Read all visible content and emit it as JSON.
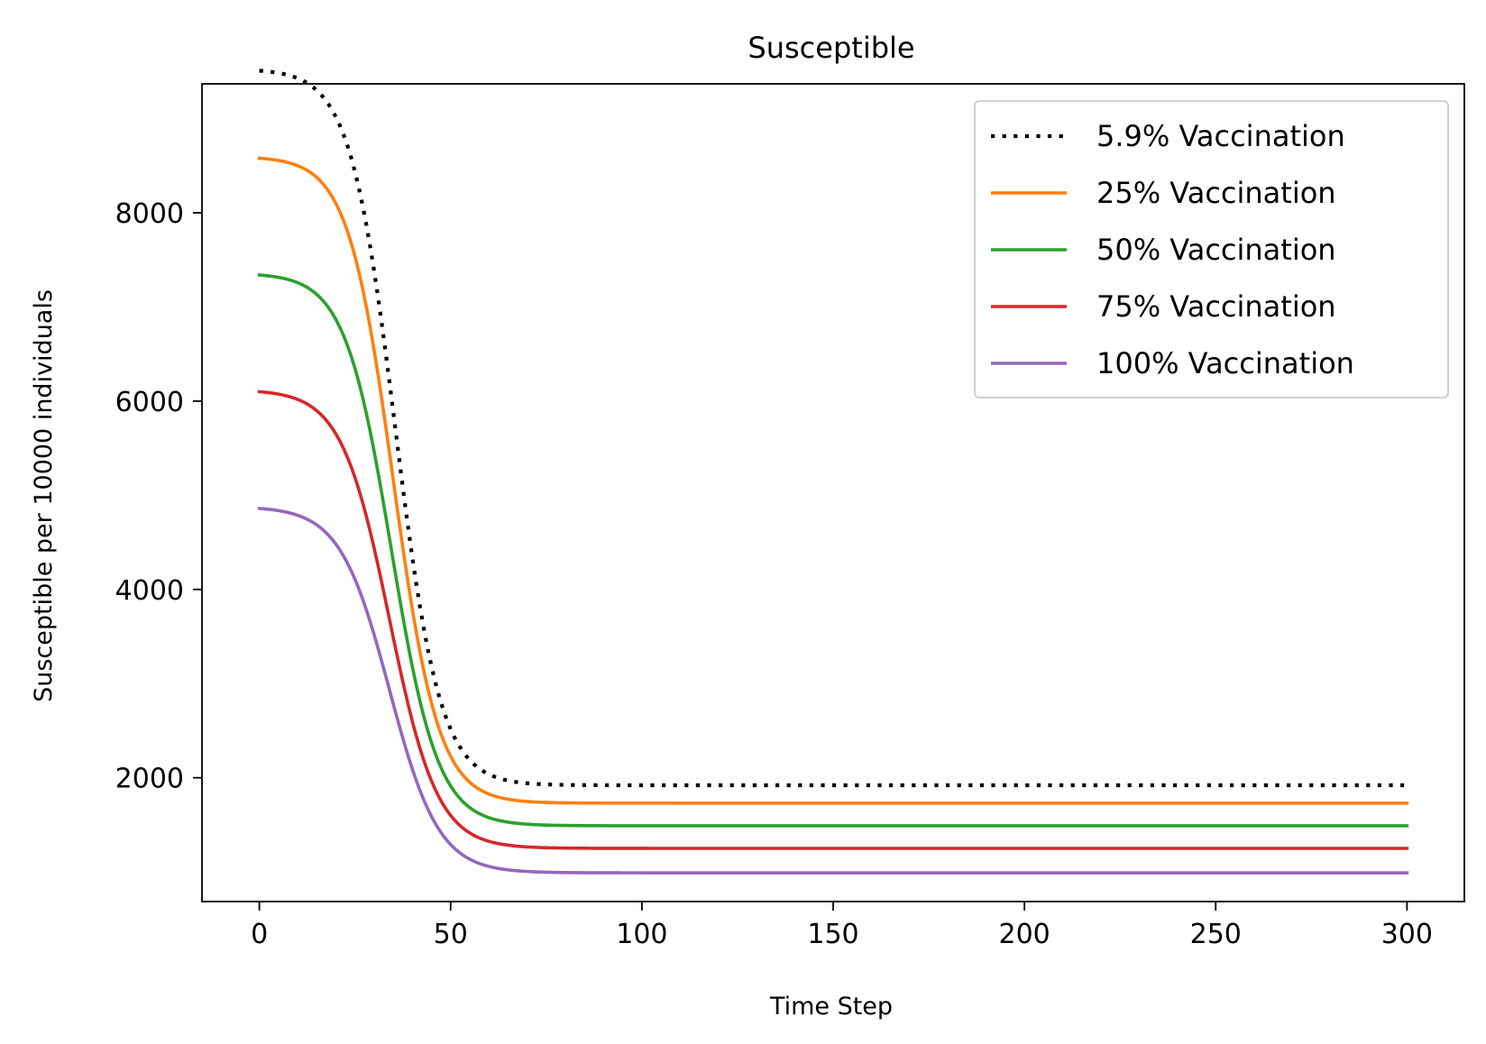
{
  "chart_data": {
    "type": "line",
    "title": "Susceptible",
    "xlabel": "Time Step",
    "ylabel": "Susceptible per 10000 individuals",
    "xlim": [
      -15,
      315
    ],
    "ylim": [
      685,
      9370
    ],
    "xticks": [
      0,
      50,
      100,
      150,
      200,
      250,
      300
    ],
    "yticks": [
      2000,
      4000,
      6000,
      8000
    ],
    "grid": false,
    "legend_position": "top-right",
    "x_range": [
      0,
      300
    ],
    "series": [
      {
        "name": "5.9% Vaccination",
        "color": "#000000",
        "style": "dotted",
        "initial": 9510,
        "final": 1920,
        "midpoint": 35.5,
        "steepness": 0.17
      },
      {
        "name": "25% Vaccination",
        "color": "#ff7f0e",
        "style": "solid",
        "initial": 8580,
        "final": 1730,
        "midpoint": 35.0,
        "steepness": 0.17
      },
      {
        "name": "50% Vaccination",
        "color": "#2ca02c",
        "style": "solid",
        "initial": 7340,
        "final": 1490,
        "midpoint": 34.5,
        "steepness": 0.165
      },
      {
        "name": "75% Vaccination",
        "color": "#d62728",
        "style": "solid",
        "initial": 6100,
        "final": 1250,
        "midpoint": 34.0,
        "steepness": 0.16
      },
      {
        "name": "100% Vaccination",
        "color": "#9467bd",
        "style": "solid",
        "initial": 4860,
        "final": 990,
        "midpoint": 34.0,
        "steepness": 0.155
      }
    ]
  }
}
